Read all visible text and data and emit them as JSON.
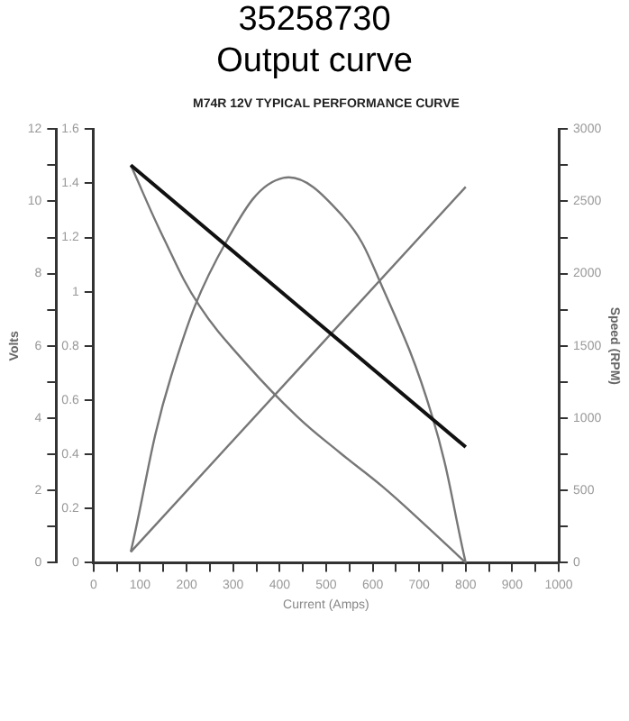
{
  "chart_data": {
    "type": "line",
    "title": "35258730",
    "subtitle": "Output curve",
    "annotations": [
      "M74R 12V TYPICAL PERFORMANCE CURVE"
    ],
    "xlabel": "Current (Amps)",
    "ylabel": "Volts",
    "y2label": "Speed (RPM)",
    "xlim": [
      0,
      1000
    ],
    "xticks": [
      0,
      {
        "value": 50,
        "label": null
      },
      100,
      {
        "value": 150,
        "label": null
      },
      200,
      {
        "value": 250,
        "label": null
      },
      300,
      {
        "value": 350,
        "label": null
      },
      400,
      {
        "value": 450,
        "label": null
      },
      500,
      {
        "value": 550,
        "label": null
      },
      600,
      {
        "value": 650,
        "label": null
      },
      700,
      {
        "value": 750,
        "label": null
      },
      800,
      {
        "value": 850,
        "label": null
      },
      900,
      {
        "value": 950,
        "label": null
      },
      1000
    ],
    "ylim": [
      0,
      12
    ],
    "yticks": [
      0,
      {
        "value": 1,
        "label": null
      },
      2,
      {
        "value": 3,
        "label": null
      },
      4,
      {
        "value": 5,
        "label": null
      },
      6,
      {
        "value": 7,
        "label": null
      },
      8,
      {
        "value": 9,
        "label": null
      },
      10,
      {
        "value": 11,
        "label": null
      },
      12
    ],
    "y2lim": [
      0,
      3000
    ],
    "y2ticks": [
      0,
      {
        "value": 250,
        "label": null
      },
      500,
      {
        "value": 750,
        "label": null
      },
      1000,
      {
        "value": 1250,
        "label": null
      },
      1500,
      {
        "value": 1750,
        "label": null
      },
      2000,
      {
        "value": 2250,
        "label": null
      },
      2500,
      {
        "value": 2750,
        "label": null
      },
      3000
    ],
    "y3lim": [
      0,
      1.6
    ],
    "y3ticks": [
      0,
      0.2,
      0.4,
      0.6,
      0.8,
      1,
      1.2,
      1.4,
      1.6
    ],
    "grid": false,
    "marker": "none",
    "line_style": "solid",
    "series": [
      {
        "color": "#111111",
        "axis": "y",
        "x": [
          80,
          800
        ],
        "values": [
          11,
          3.2
        ]
      },
      {
        "color": "#777777",
        "axis": "y2",
        "x": [
          80,
          150,
          227,
          330,
          438,
          530,
          620,
          710,
          800
        ],
        "values": [
          2750,
          2250,
          1780,
          1370,
          1010,
          760,
          530,
          270,
          0
        ]
      },
      {
        "color": "#777777",
        "axis": "y",
        "x": [
          80,
          800
        ],
        "values": [
          0.3,
          10.4
        ]
      },
      {
        "color": "#777777",
        "axis": "y3",
        "x": [
          80,
          167,
          287,
          408,
          535,
          620,
          728,
          800
        ],
        "values": [
          0.04,
          0.69,
          1.19,
          1.42,
          1.28,
          1.02,
          0.54,
          0
        ]
      }
    ]
  }
}
